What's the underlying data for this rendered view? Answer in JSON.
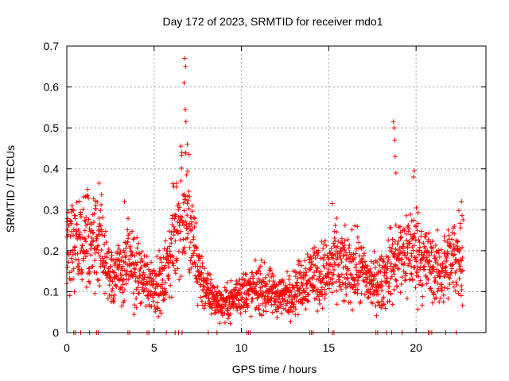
{
  "chart_data": {
    "type": "scatter",
    "title": "Day 172 of 2023, SRMTID for receiver mdo1",
    "xlabel": "GPS time / hours",
    "ylabel": "SRMTID / TECUs",
    "xlim": [
      0,
      24
    ],
    "ylim": [
      0,
      0.7
    ],
    "xticks": [
      0,
      5,
      10,
      15,
      20
    ],
    "yticks": [
      0,
      0.1,
      0.2,
      0.3,
      0.4,
      0.5,
      0.6,
      0.7
    ],
    "xtick_labels": [
      "0",
      "5",
      "10",
      "15",
      "20"
    ],
    "ytick_labels": [
      "0",
      "0.1",
      "0.2",
      "0.3",
      "0.4",
      "0.5",
      "0.6",
      "0.7"
    ],
    "grid": true,
    "marker": "+",
    "marker_color": "#ff0000",
    "series": [
      {
        "name": "mdo1",
        "trend_x": [
          0,
          0.5,
          1,
          1.5,
          2,
          2.5,
          3,
          3.5,
          4,
          4.5,
          5,
          5.5,
          6,
          6.5,
          6.8,
          7,
          7.5,
          8,
          8.5,
          9,
          9.5,
          10,
          10.5,
          11,
          11.5,
          12,
          12.5,
          13,
          13.5,
          14,
          14.5,
          15,
          15.5,
          16,
          16.5,
          17,
          17.5,
          18,
          18.5,
          19,
          19.5,
          20,
          20.5,
          21,
          21.5,
          22,
          22.5,
          22.7
        ],
        "trend_y": [
          0.2,
          0.22,
          0.24,
          0.23,
          0.2,
          0.15,
          0.14,
          0.17,
          0.15,
          0.13,
          0.12,
          0.12,
          0.2,
          0.3,
          0.33,
          0.25,
          0.16,
          0.1,
          0.08,
          0.07,
          0.08,
          0.1,
          0.1,
          0.11,
          0.1,
          0.09,
          0.09,
          0.1,
          0.12,
          0.15,
          0.14,
          0.15,
          0.17,
          0.15,
          0.16,
          0.14,
          0.12,
          0.12,
          0.16,
          0.18,
          0.2,
          0.2,
          0.18,
          0.15,
          0.15,
          0.17,
          0.2,
          0.2
        ],
        "spikes": [
          {
            "x": 6.75,
            "y": 0.67
          },
          {
            "x": 6.8,
            "y": 0.65
          },
          {
            "x": 6.72,
            "y": 0.61
          },
          {
            "x": 6.78,
            "y": 0.545
          },
          {
            "x": 6.82,
            "y": 0.515
          },
          {
            "x": 6.9,
            "y": 0.46
          },
          {
            "x": 7.0,
            "y": 0.435
          },
          {
            "x": 18.7,
            "y": 0.515
          },
          {
            "x": 18.75,
            "y": 0.5
          },
          {
            "x": 18.78,
            "y": 0.47
          },
          {
            "x": 18.8,
            "y": 0.43
          },
          {
            "x": 18.85,
            "y": 0.39
          },
          {
            "x": 19.9,
            "y": 0.395
          },
          {
            "x": 19.85,
            "y": 0.38
          },
          {
            "x": 15.2,
            "y": 0.315
          },
          {
            "x": 3.3,
            "y": 0.32
          },
          {
            "x": 1.85,
            "y": 0.365
          },
          {
            "x": 22.6,
            "y": 0.32
          }
        ],
        "zero_x": [
          0.4,
          0.5,
          0.8,
          1.3,
          1.7,
          1.8,
          3.5,
          3.6,
          4.6,
          4.7,
          5.7,
          6.2,
          6.4,
          6.6,
          8.1,
          8.6,
          10.3,
          10.4,
          10.5,
          13.9,
          14.0,
          14.1,
          15.2,
          15.3,
          17.7,
          17.8,
          18.3,
          18.6,
          19.2,
          20.7,
          20.8,
          20.9,
          21.7,
          22.3
        ]
      }
    ]
  }
}
